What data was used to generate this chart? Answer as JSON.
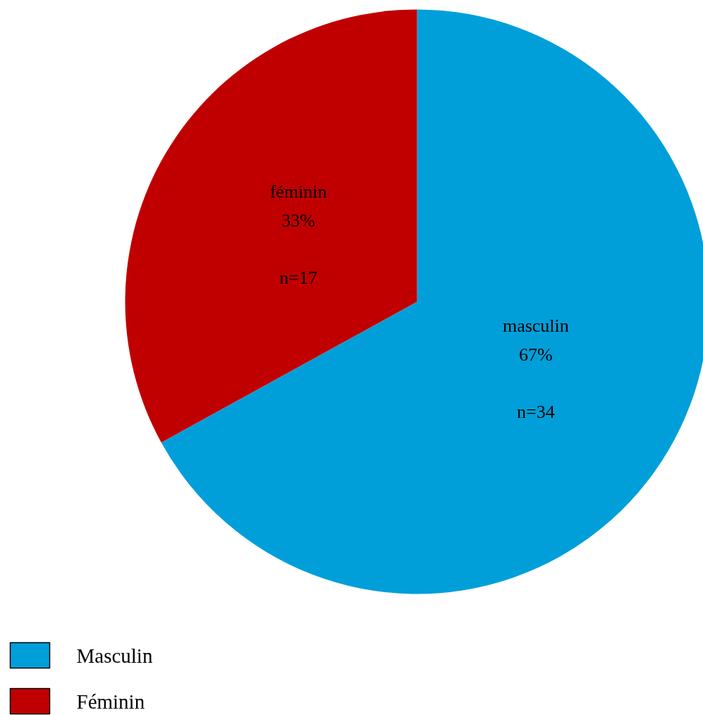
{
  "chart_data": {
    "type": "pie",
    "categories": [
      "Masculin",
      "Féminin"
    ],
    "values": [
      67,
      33
    ],
    "colors": [
      "#009fda",
      "#c00000"
    ],
    "value_labels": [
      "masculin\n67%\n\nn=34",
      "féminin\n33%\n\nn=17"
    ],
    "legend": "bottom left"
  }
}
